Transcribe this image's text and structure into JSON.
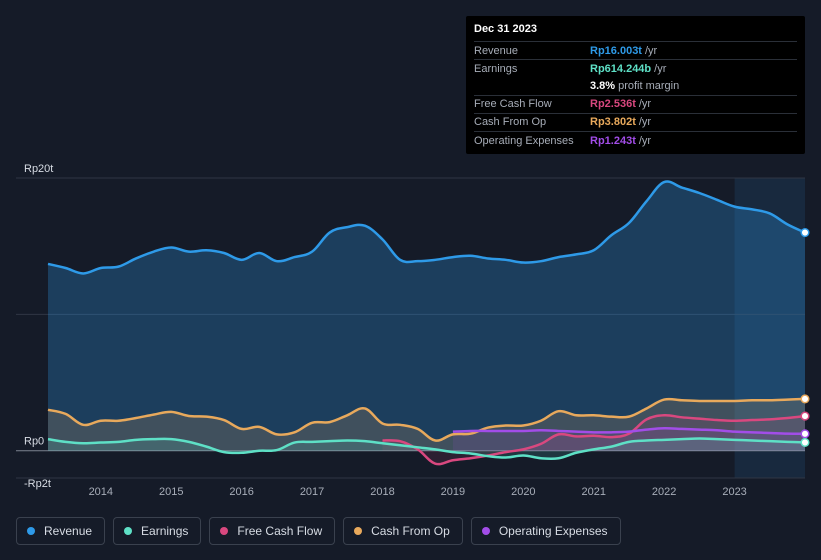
{
  "tooltip": {
    "date": "Dec 31 2023",
    "rows": [
      {
        "label": "Revenue",
        "value": "Rp16.003t",
        "unit": "/yr",
        "color": "#2e9ae8"
      },
      {
        "label": "Earnings",
        "value": "Rp614.244b",
        "unit": "/yr",
        "color": "#5ee0c6"
      },
      {
        "margin_value": "3.8%",
        "margin_text": "profit margin"
      },
      {
        "label": "Free Cash Flow",
        "value": "Rp2.536t",
        "unit": "/yr",
        "color": "#d9487f"
      },
      {
        "label": "Cash From Op",
        "value": "Rp3.802t",
        "unit": "/yr",
        "color": "#e8a95c"
      },
      {
        "label": "Operating Expenses",
        "value": "Rp1.243t",
        "unit": "/yr",
        "color": "#a24de8"
      }
    ]
  },
  "legend": [
    {
      "label": "Revenue",
      "color": "#2e9ae8"
    },
    {
      "label": "Earnings",
      "color": "#5ee0c6"
    },
    {
      "label": "Free Cash Flow",
      "color": "#d9487f"
    },
    {
      "label": "Cash From Op",
      "color": "#e8a95c"
    },
    {
      "label": "Operating Expenses",
      "color": "#a24de8"
    }
  ],
  "chart_data": {
    "type": "area",
    "title": "",
    "y_unit": "trillion IDR",
    "ylim": [
      -2,
      20
    ],
    "y_tick_labels": [
      {
        "value": 20,
        "label": "Rp20t"
      },
      {
        "value": 0,
        "label": "Rp0"
      },
      {
        "value": -2,
        "label": "-Rp2t"
      }
    ],
    "x_tick_labels": [
      "2014",
      "2015",
      "2016",
      "2017",
      "2018",
      "2019",
      "2020",
      "2021",
      "2022",
      "2023"
    ],
    "x_tick_values": [
      2014,
      2015,
      2016,
      2017,
      2018,
      2019,
      2020,
      2021,
      2022,
      2023
    ],
    "xlim": [
      2013.25,
      2024.0
    ],
    "highlight_start": 2023.0,
    "series": [
      {
        "name": "Revenue",
        "color": "#2e9ae8",
        "points": [
          [
            2013.25,
            13.7
          ],
          [
            2013.5,
            13.4
          ],
          [
            2013.75,
            13.0
          ],
          [
            2014.0,
            13.4
          ],
          [
            2014.25,
            13.5
          ],
          [
            2014.5,
            14.1
          ],
          [
            2014.75,
            14.6
          ],
          [
            2015.0,
            14.9
          ],
          [
            2015.25,
            14.6
          ],
          [
            2015.5,
            14.7
          ],
          [
            2015.75,
            14.5
          ],
          [
            2016.0,
            14.0
          ],
          [
            2016.25,
            14.5
          ],
          [
            2016.5,
            13.9
          ],
          [
            2016.75,
            14.2
          ],
          [
            2017.0,
            14.6
          ],
          [
            2017.25,
            16.0
          ],
          [
            2017.5,
            16.4
          ],
          [
            2017.75,
            16.5
          ],
          [
            2018.0,
            15.5
          ],
          [
            2018.25,
            14.0
          ],
          [
            2018.5,
            13.9
          ],
          [
            2018.75,
            14.0
          ],
          [
            2019.0,
            14.2
          ],
          [
            2019.25,
            14.3
          ],
          [
            2019.5,
            14.1
          ],
          [
            2019.75,
            14.0
          ],
          [
            2020.0,
            13.8
          ],
          [
            2020.25,
            13.9
          ],
          [
            2020.5,
            14.2
          ],
          [
            2020.75,
            14.4
          ],
          [
            2021.0,
            14.7
          ],
          [
            2021.25,
            15.8
          ],
          [
            2021.5,
            16.7
          ],
          [
            2021.75,
            18.3
          ],
          [
            2022.0,
            19.7
          ],
          [
            2022.25,
            19.3
          ],
          [
            2022.5,
            18.9
          ],
          [
            2022.75,
            18.4
          ],
          [
            2023.0,
            17.9
          ],
          [
            2023.25,
            17.7
          ],
          [
            2023.5,
            17.4
          ],
          [
            2023.75,
            16.6
          ],
          [
            2024.0,
            16.0
          ]
        ]
      },
      {
        "name": "Earnings",
        "color": "#5ee0c6",
        "points": [
          [
            2013.25,
            0.85
          ],
          [
            2013.5,
            0.65
          ],
          [
            2013.75,
            0.55
          ],
          [
            2014.0,
            0.6
          ],
          [
            2014.25,
            0.65
          ],
          [
            2014.5,
            0.8
          ],
          [
            2014.75,
            0.85
          ],
          [
            2015.0,
            0.85
          ],
          [
            2015.25,
            0.65
          ],
          [
            2015.5,
            0.3
          ],
          [
            2015.75,
            -0.1
          ],
          [
            2016.0,
            -0.15
          ],
          [
            2016.25,
            0.0
          ],
          [
            2016.5,
            0.05
          ],
          [
            2016.75,
            0.6
          ],
          [
            2017.0,
            0.65
          ],
          [
            2017.25,
            0.7
          ],
          [
            2017.5,
            0.75
          ],
          [
            2017.75,
            0.7
          ],
          [
            2018.0,
            0.55
          ],
          [
            2018.25,
            0.4
          ],
          [
            2018.5,
            0.25
          ],
          [
            2018.75,
            0.1
          ],
          [
            2019.0,
            -0.1
          ],
          [
            2019.25,
            -0.2
          ],
          [
            2019.5,
            -0.4
          ],
          [
            2019.75,
            -0.5
          ],
          [
            2020.0,
            -0.35
          ],
          [
            2020.25,
            -0.55
          ],
          [
            2020.5,
            -0.55
          ],
          [
            2020.75,
            -0.15
          ],
          [
            2021.0,
            0.1
          ],
          [
            2021.25,
            0.3
          ],
          [
            2021.5,
            0.65
          ],
          [
            2021.75,
            0.75
          ],
          [
            2022.0,
            0.8
          ],
          [
            2022.25,
            0.85
          ],
          [
            2022.5,
            0.9
          ],
          [
            2022.75,
            0.85
          ],
          [
            2023.0,
            0.8
          ],
          [
            2023.25,
            0.75
          ],
          [
            2023.5,
            0.7
          ],
          [
            2023.75,
            0.65
          ],
          [
            2024.0,
            0.61
          ]
        ]
      },
      {
        "name": "Free Cash Flow",
        "color": "#d9487f",
        "points": [
          [
            2018.0,
            0.75
          ],
          [
            2018.25,
            0.7
          ],
          [
            2018.5,
            0.1
          ],
          [
            2018.75,
            -0.95
          ],
          [
            2019.0,
            -0.7
          ],
          [
            2019.25,
            -0.55
          ],
          [
            2019.5,
            -0.35
          ],
          [
            2019.75,
            -0.1
          ],
          [
            2020.0,
            0.1
          ],
          [
            2020.25,
            0.5
          ],
          [
            2020.5,
            1.2
          ],
          [
            2020.75,
            1.05
          ],
          [
            2021.0,
            1.1
          ],
          [
            2021.25,
            1.0
          ],
          [
            2021.5,
            1.25
          ],
          [
            2021.75,
            2.3
          ],
          [
            2022.0,
            2.6
          ],
          [
            2022.25,
            2.45
          ],
          [
            2022.5,
            2.35
          ],
          [
            2022.75,
            2.25
          ],
          [
            2023.0,
            2.2
          ],
          [
            2023.25,
            2.25
          ],
          [
            2023.5,
            2.3
          ],
          [
            2023.75,
            2.4
          ],
          [
            2024.0,
            2.54
          ]
        ]
      },
      {
        "name": "Cash From Op",
        "color": "#e8a95c",
        "points": [
          [
            2013.25,
            3.0
          ],
          [
            2013.5,
            2.7
          ],
          [
            2013.75,
            1.9
          ],
          [
            2014.0,
            2.2
          ],
          [
            2014.25,
            2.2
          ],
          [
            2014.5,
            2.4
          ],
          [
            2014.75,
            2.65
          ],
          [
            2015.0,
            2.85
          ],
          [
            2015.25,
            2.55
          ],
          [
            2015.5,
            2.5
          ],
          [
            2015.75,
            2.25
          ],
          [
            2016.0,
            1.6
          ],
          [
            2016.25,
            1.75
          ],
          [
            2016.5,
            1.2
          ],
          [
            2016.75,
            1.35
          ],
          [
            2017.0,
            2.05
          ],
          [
            2017.25,
            2.1
          ],
          [
            2017.5,
            2.6
          ],
          [
            2017.75,
            3.1
          ],
          [
            2018.0,
            2.0
          ],
          [
            2018.25,
            1.9
          ],
          [
            2018.5,
            1.6
          ],
          [
            2018.75,
            0.75
          ],
          [
            2019.0,
            1.2
          ],
          [
            2019.25,
            1.25
          ],
          [
            2019.5,
            1.7
          ],
          [
            2019.75,
            1.85
          ],
          [
            2020.0,
            1.85
          ],
          [
            2020.25,
            2.2
          ],
          [
            2020.5,
            2.9
          ],
          [
            2020.75,
            2.6
          ],
          [
            2021.0,
            2.6
          ],
          [
            2021.25,
            2.5
          ],
          [
            2021.5,
            2.5
          ],
          [
            2021.75,
            3.1
          ],
          [
            2022.0,
            3.75
          ],
          [
            2022.25,
            3.7
          ],
          [
            2022.5,
            3.65
          ],
          [
            2022.75,
            3.65
          ],
          [
            2023.0,
            3.65
          ],
          [
            2023.25,
            3.7
          ],
          [
            2023.5,
            3.7
          ],
          [
            2023.75,
            3.75
          ],
          [
            2024.0,
            3.8
          ]
        ]
      },
      {
        "name": "Operating Expenses",
        "color": "#a24de8",
        "points": [
          [
            2019.0,
            1.4
          ],
          [
            2019.25,
            1.45
          ],
          [
            2019.5,
            1.45
          ],
          [
            2019.75,
            1.45
          ],
          [
            2020.0,
            1.45
          ],
          [
            2020.25,
            1.5
          ],
          [
            2020.5,
            1.45
          ],
          [
            2020.75,
            1.4
          ],
          [
            2021.0,
            1.35
          ],
          [
            2021.25,
            1.35
          ],
          [
            2021.5,
            1.4
          ],
          [
            2021.75,
            1.55
          ],
          [
            2022.0,
            1.65
          ],
          [
            2022.25,
            1.6
          ],
          [
            2022.5,
            1.55
          ],
          [
            2022.75,
            1.5
          ],
          [
            2023.0,
            1.4
          ],
          [
            2023.25,
            1.35
          ],
          [
            2023.5,
            1.3
          ],
          [
            2023.75,
            1.25
          ],
          [
            2024.0,
            1.24
          ]
        ]
      }
    ]
  }
}
